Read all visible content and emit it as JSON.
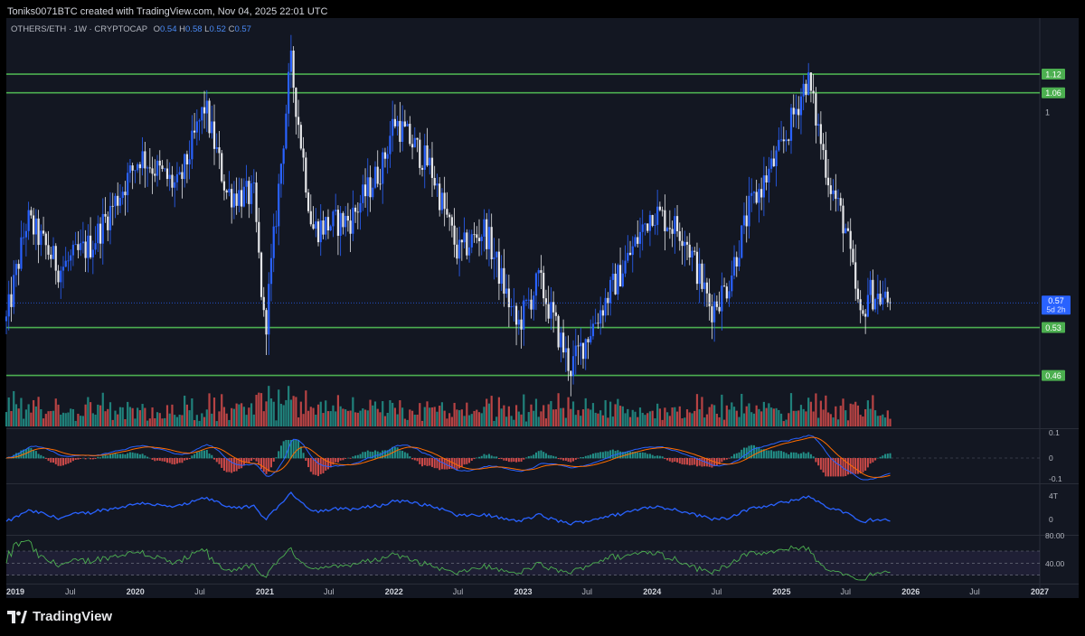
{
  "credit": "Toniks0071BTC created with TradingView.com, Nov 04, 2025 22:01 UTC",
  "legend": {
    "symbol": "OTHERS/ETH · 1W · CRYPTOCAP",
    "o_label": "O",
    "o": "0.54",
    "h_label": "H",
    "h": "0.58",
    "l_label": "L",
    "l": "0.52",
    "c_label": "C",
    "c": "0.57"
  },
  "brand": "TradingView",
  "colors": {
    "background": "#131722",
    "pane_border": "#2a2e39",
    "candle_up": "#2962ff",
    "candle_down": "#e6e7ea",
    "level_line": "#4caf50",
    "vol_up": "#26a69a",
    "vol_down": "#ef5350",
    "macd_line": "#2962ff",
    "signal_line": "#ff6d00",
    "obv_line": "#2962ff",
    "rsi_line": "#4caf50",
    "price_tag": "#2962ff"
  },
  "chart_data": {
    "type": "line",
    "symbol": "OTHERS/ETH",
    "interval": "1W",
    "x_tick_labels": [
      "2019",
      "Jul",
      "2020",
      "Jul",
      "2021",
      "Jul",
      "2022",
      "Jul",
      "2023",
      "Jul",
      "2024",
      "Jul",
      "2025",
      "Jul",
      "2026",
      "Jul",
      "2027"
    ],
    "price_axis_labels": [
      "1"
    ],
    "last_price": "0.57",
    "countdown": "5d 2h",
    "horizontal_levels": [
      {
        "value": 1.12,
        "label": "1.12"
      },
      {
        "value": 1.06,
        "label": "1.06"
      },
      {
        "value": 0.53,
        "label": "0.53"
      },
      {
        "value": 0.46,
        "label": "0.46"
      }
    ],
    "price_anchors": [
      {
        "date": "2019-01-01",
        "value": 0.54
      },
      {
        "date": "2019-03-01",
        "value": 0.73
      },
      {
        "date": "2019-06-01",
        "value": 0.63
      },
      {
        "date": "2019-09-01",
        "value": 0.68
      },
      {
        "date": "2020-01-15",
        "value": 0.88
      },
      {
        "date": "2020-05-01",
        "value": 0.8
      },
      {
        "date": "2020-07-15",
        "value": 1.02
      },
      {
        "date": "2020-09-15",
        "value": 0.79
      },
      {
        "date": "2020-12-01",
        "value": 0.78
      },
      {
        "date": "2021-01-01",
        "value": 0.52
      },
      {
        "date": "2021-03-15",
        "value": 1.16
      },
      {
        "date": "2021-05-15",
        "value": 0.71
      },
      {
        "date": "2021-09-01",
        "value": 0.73
      },
      {
        "date": "2021-12-01",
        "value": 0.86
      },
      {
        "date": "2022-01-01",
        "value": 0.98
      },
      {
        "date": "2022-04-15",
        "value": 0.85
      },
      {
        "date": "2022-07-01",
        "value": 0.66
      },
      {
        "date": "2022-09-15",
        "value": 0.71
      },
      {
        "date": "2022-12-15",
        "value": 0.53
      },
      {
        "date": "2023-02-15",
        "value": 0.61
      },
      {
        "date": "2023-05-15",
        "value": 0.47
      },
      {
        "date": "2023-08-01",
        "value": 0.55
      },
      {
        "date": "2023-11-01",
        "value": 0.66
      },
      {
        "date": "2024-01-01",
        "value": 0.75
      },
      {
        "date": "2024-04-01",
        "value": 0.7
      },
      {
        "date": "2024-06-15",
        "value": 0.56
      },
      {
        "date": "2024-08-01",
        "value": 0.6
      },
      {
        "date": "2024-10-01",
        "value": 0.75
      },
      {
        "date": "2025-01-01",
        "value": 0.9
      },
      {
        "date": "2025-03-15",
        "value": 1.11
      },
      {
        "date": "2025-05-15",
        "value": 0.82
      },
      {
        "date": "2025-07-01",
        "value": 0.71
      },
      {
        "date": "2025-08-15",
        "value": 0.53
      },
      {
        "date": "2025-09-01",
        "value": 0.59
      },
      {
        "date": "2025-11-04",
        "value": 0.57
      }
    ],
    "volume_pane": {
      "shown": true,
      "scale": "relative"
    },
    "macd_pane": {
      "axis_labels": [
        "0.1",
        "0",
        "-0.1"
      ]
    },
    "obv_pane": {
      "axis_labels": [
        "4T",
        "0"
      ]
    },
    "rsi_pane": {
      "axis_labels": [
        "80.00",
        "40.00"
      ],
      "upper_band": 70,
      "lower_band": 30
    }
  }
}
